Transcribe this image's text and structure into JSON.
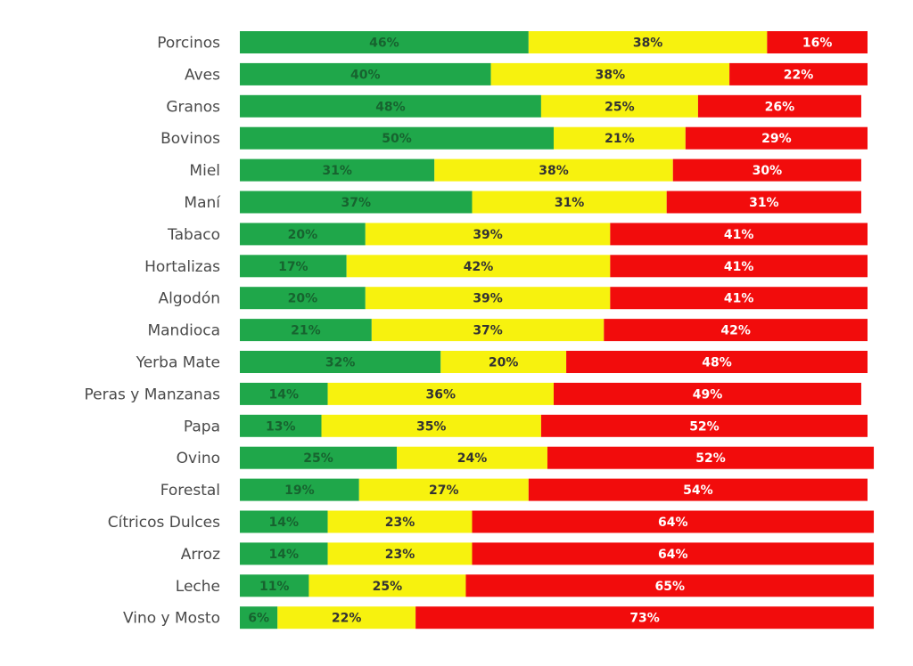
{
  "chart_data": {
    "type": "bar",
    "orientation": "horizontal",
    "stacked": true,
    "normalized_to_percent": true,
    "grid": false,
    "legend": "none",
    "categories": [
      "Porcinos",
      "Aves",
      "Granos",
      "Bovinos",
      "Miel",
      "Maní",
      "Tabaco",
      "Hortalizas",
      "Algodón",
      "Mandioca",
      "Yerba Mate",
      "Peras y Manzanas",
      "Papa",
      "Ovino",
      "Forestal",
      "Cítricos Dulces",
      "Arroz",
      "Leche",
      "Vino y Mosto"
    ],
    "series": [
      {
        "color": "#1fa74a",
        "label_color": "#17632f",
        "values": [
          46,
          40,
          48,
          50,
          31,
          37,
          20,
          17,
          20,
          21,
          32,
          14,
          13,
          25,
          19,
          14,
          14,
          11,
          6
        ]
      },
      {
        "color": "#f7f20e",
        "label_color": "#333333",
        "values": [
          38,
          38,
          25,
          21,
          38,
          31,
          39,
          42,
          39,
          37,
          20,
          36,
          35,
          24,
          27,
          23,
          23,
          25,
          22
        ]
      },
      {
        "color": "#f20c0c",
        "label_color": "#ffffff",
        "values": [
          16,
          22,
          26,
          29,
          30,
          31,
          41,
          41,
          41,
          42,
          48,
          49,
          52,
          52,
          54,
          64,
          64,
          65,
          73
        ]
      }
    ],
    "value_suffix": "%",
    "xlim": [
      0,
      100
    ]
  }
}
